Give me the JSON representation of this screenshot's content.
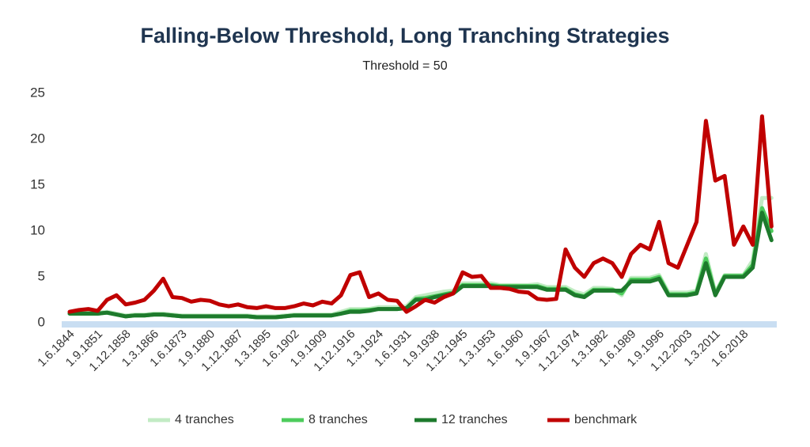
{
  "chart_data": {
    "type": "line",
    "title": "Falling-Below Threshold, Long Tranching Strategies",
    "subtitle": "Threshold = 50",
    "categories": [
      "1.6.1844",
      null,
      null,
      "1.9.1851",
      null,
      null,
      "1.12.1858",
      null,
      null,
      "1.3.1866",
      null,
      null,
      "1.6.1873",
      null,
      null,
      "1.9.1880",
      null,
      null,
      "1.12.1887",
      null,
      null,
      "1.3.1895",
      null,
      null,
      "1.6.1902",
      null,
      null,
      "1.9.1909",
      null,
      null,
      "1.12.1916",
      null,
      null,
      "1.3.1924",
      null,
      null,
      "1.6.1931",
      null,
      null,
      "1.9.1938",
      null,
      null,
      "1.12.1945",
      null,
      null,
      "1.3.1953",
      null,
      null,
      "1.6.1960",
      null,
      null,
      "1.9.1967",
      null,
      null,
      "1.12.1974",
      null,
      null,
      "1.3.1982",
      null,
      null,
      "1.6.1989",
      null,
      null,
      "1.9.1996",
      null,
      null,
      "1.12.2003",
      null,
      null,
      "1.3.2011",
      null,
      null,
      "1.6.2018",
      null,
      null,
      null
    ],
    "series": [
      {
        "name": "4 tranches",
        "color": "#c2ebc4",
        "values": [
          1.1,
          1.1,
          1.1,
          1.1,
          1.2,
          1.0,
          0.8,
          0.9,
          0.9,
          1.0,
          1.0,
          0.9,
          0.8,
          0.8,
          0.8,
          0.8,
          0.8,
          0.8,
          0.8,
          0.8,
          0.7,
          0.7,
          0.7,
          0.8,
          0.9,
          0.9,
          0.9,
          0.9,
          0.9,
          1.2,
          1.5,
          1.5,
          1.5,
          1.7,
          1.7,
          1.7,
          1.8,
          2.8,
          3.0,
          3.2,
          3.4,
          3.5,
          4.3,
          4.3,
          4.3,
          4.3,
          4.1,
          4.1,
          4.1,
          4.1,
          4.2,
          3.9,
          3.9,
          3.9,
          3.4,
          3.1,
          3.8,
          3.8,
          3.7,
          3.0,
          4.9,
          4.9,
          4.9,
          5.2,
          3.3,
          3.3,
          3.3,
          3.5,
          7.5,
          3.3,
          5.2,
          5.2,
          5.2,
          6.8,
          13.6,
          13.6
        ]
      },
      {
        "name": "8 tranches",
        "color": "#4dcc5c",
        "values": [
          1.0,
          1.0,
          1.0,
          1.0,
          1.1,
          0.9,
          0.7,
          0.8,
          0.8,
          0.9,
          0.9,
          0.8,
          0.7,
          0.7,
          0.7,
          0.7,
          0.7,
          0.7,
          0.7,
          0.7,
          0.6,
          0.6,
          0.6,
          0.7,
          0.8,
          0.8,
          0.8,
          0.8,
          0.8,
          1.0,
          1.3,
          1.3,
          1.4,
          1.5,
          1.5,
          1.5,
          1.6,
          2.6,
          2.7,
          2.9,
          3.1,
          3.3,
          4.1,
          4.1,
          4.1,
          4.1,
          4.0,
          4.0,
          4.0,
          4.0,
          4.0,
          3.7,
          3.7,
          3.7,
          3.1,
          2.9,
          3.6,
          3.6,
          3.6,
          3.2,
          4.7,
          4.7,
          4.7,
          5.0,
          3.1,
          3.1,
          3.1,
          3.3,
          7.0,
          3.1,
          5.1,
          5.1,
          5.1,
          6.3,
          12.5,
          10.0
        ]
      },
      {
        "name": "12 tranches",
        "color": "#1d7a2c",
        "values": [
          1.0,
          1.0,
          1.0,
          1.0,
          1.1,
          0.9,
          0.7,
          0.8,
          0.8,
          0.9,
          0.9,
          0.8,
          0.7,
          0.7,
          0.7,
          0.7,
          0.7,
          0.7,
          0.7,
          0.7,
          0.6,
          0.6,
          0.6,
          0.7,
          0.8,
          0.8,
          0.8,
          0.8,
          0.8,
          1.0,
          1.2,
          1.2,
          1.3,
          1.5,
          1.5,
          1.5,
          1.6,
          2.5,
          2.5,
          2.8,
          3.0,
          3.2,
          4.0,
          4.0,
          4.0,
          4.0,
          3.9,
          3.9,
          3.9,
          3.9,
          3.9,
          3.6,
          3.6,
          3.6,
          3.0,
          2.8,
          3.5,
          3.5,
          3.5,
          3.5,
          4.5,
          4.5,
          4.5,
          4.8,
          3.0,
          3.0,
          3.0,
          3.2,
          6.5,
          3.0,
          5.0,
          5.0,
          5.0,
          6.0,
          12.0,
          9.0
        ]
      },
      {
        "name": "benchmark",
        "color": "#c00000",
        "values": [
          1.2,
          1.4,
          1.5,
          1.3,
          2.5,
          3.0,
          2.0,
          2.2,
          2.5,
          3.5,
          4.8,
          2.8,
          2.7,
          2.3,
          2.5,
          2.4,
          2.0,
          1.8,
          2.0,
          1.7,
          1.6,
          1.8,
          1.6,
          1.6,
          1.8,
          2.1,
          1.9,
          2.3,
          2.1,
          3.0,
          5.2,
          5.5,
          2.8,
          3.2,
          2.5,
          2.4,
          1.2,
          1.8,
          2.5,
          2.2,
          2.8,
          3.2,
          5.5,
          5.0,
          5.1,
          3.8,
          3.8,
          3.7,
          3.4,
          3.3,
          2.6,
          2.5,
          2.6,
          8.0,
          6.0,
          5.0,
          6.5,
          7.0,
          6.5,
          5.0,
          7.5,
          8.5,
          8.0,
          11.0,
          6.5,
          6.0,
          8.5,
          11.0,
          22.0,
          15.5,
          16.0,
          8.5,
          10.5,
          8.5,
          22.5,
          10.5
        ]
      }
    ],
    "ylim": [
      0,
      25
    ],
    "yticks": [
      0,
      5,
      10,
      15,
      20,
      25
    ]
  }
}
